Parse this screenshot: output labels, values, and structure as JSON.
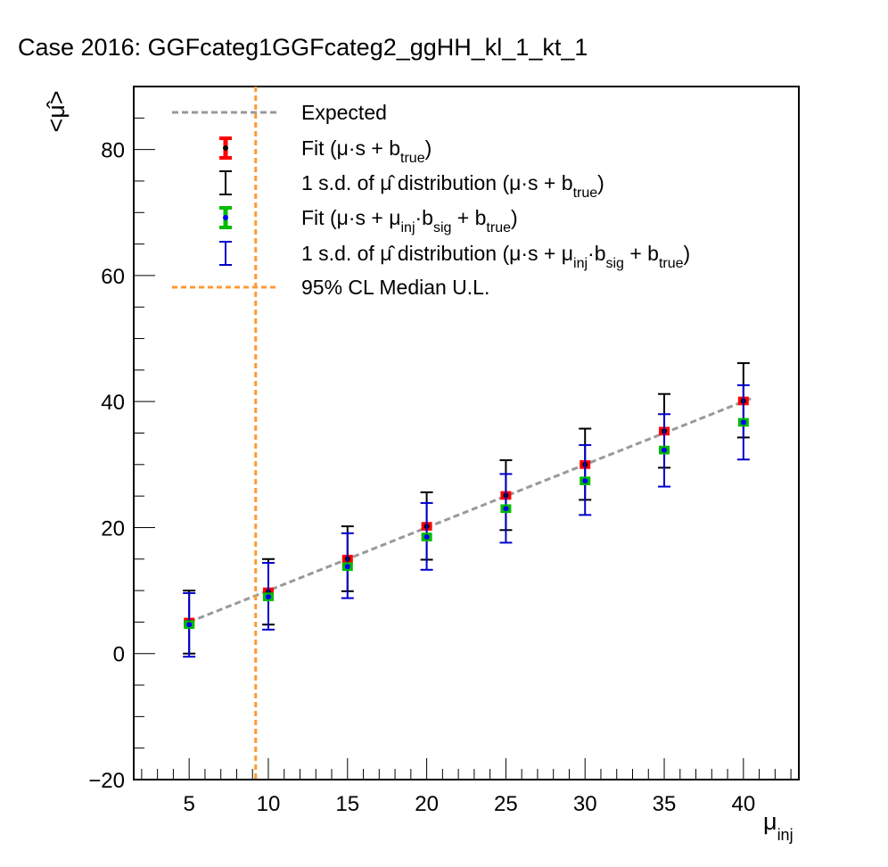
{
  "title": "Case 2016: GGFcateg1GGFcateg2_ggHH_kl_1_kt_1",
  "chart_data": {
    "type": "scatter",
    "xlabel": "μinj",
    "ylabel": "<μ̂>",
    "xlim": [
      1.5,
      43.5
    ],
    "ylim": [
      -20,
      90
    ],
    "x_ticks": [
      5,
      10,
      15,
      20,
      25,
      30,
      35,
      40
    ],
    "y_ticks": [
      -20,
      0,
      20,
      40,
      60,
      80
    ],
    "expected": {
      "x": [
        5,
        40.5
      ],
      "y": [
        5,
        40.5
      ],
      "color": "#999999"
    },
    "upper_limit": {
      "x": 9.2,
      "color": "#ff9933"
    },
    "legend": [
      {
        "key": "expected",
        "label": "Expected"
      },
      {
        "key": "fit_true",
        "label_main": "Fit (μ·s + b",
        "label_sub": "true",
        "label_end": ")"
      },
      {
        "key": "sd_true",
        "label_main": "1 s.d. of μ̂ distribution (μ·s + b",
        "label_sub": "true",
        "label_end": ")"
      },
      {
        "key": "fit_sig",
        "label_main": "Fit (μ·s + μ",
        "label_sub": "inj",
        "label_mid": "·b",
        "label_sub2": "sig",
        "label_mid2": " + b",
        "label_sub3": "true",
        "label_end": ")"
      },
      {
        "key": "sd_sig",
        "label_main": "1 s.d. of μ̂ distribution (μ·s + μ",
        "label_sub": "inj",
        "label_mid": "·b",
        "label_sub2": "sig",
        "label_mid2": " + b",
        "label_sub3": "true",
        "label_end": ")"
      },
      {
        "key": "ul",
        "label": "95% CL Median U.L."
      }
    ],
    "series": [
      {
        "name": "Fit (μ·s + b_true)",
        "color": "#ff0000",
        "marker_color": "#000000",
        "sd_color": "#000000",
        "x": [
          5,
          10,
          15,
          20,
          25,
          30,
          35,
          40
        ],
        "y": [
          5.0,
          9.8,
          15.0,
          20.2,
          25.1,
          30.0,
          35.3,
          40.1
        ],
        "fit_err": [
          0.4,
          0.4,
          0.4,
          0.4,
          0.4,
          0.4,
          0.4,
          0.4
        ],
        "sd_low": [
          0.0,
          4.6,
          9.9,
          14.9,
          19.6,
          24.4,
          29.5,
          34.3
        ],
        "sd_high": [
          10.0,
          15.0,
          20.2,
          25.6,
          30.7,
          35.7,
          41.2,
          46.1
        ]
      },
      {
        "name": "Fit (μ·s + μinj·b_sig + b_true)",
        "color": "#00bb00",
        "marker_color": "#0000ff",
        "sd_color": "#0000cc",
        "x": [
          5,
          10,
          15,
          20,
          25,
          30,
          35,
          40
        ],
        "y": [
          4.6,
          9.0,
          13.8,
          18.5,
          23.0,
          27.4,
          32.3,
          36.7
        ],
        "fit_err": [
          0.4,
          0.4,
          0.4,
          0.4,
          0.4,
          0.4,
          0.4,
          0.4
        ],
        "sd_low": [
          -0.5,
          3.8,
          8.8,
          13.3,
          17.6,
          22.0,
          26.5,
          30.8
        ],
        "sd_high": [
          9.6,
          14.4,
          19.1,
          23.9,
          28.5,
          33.1,
          38.0,
          42.6
        ]
      }
    ]
  }
}
